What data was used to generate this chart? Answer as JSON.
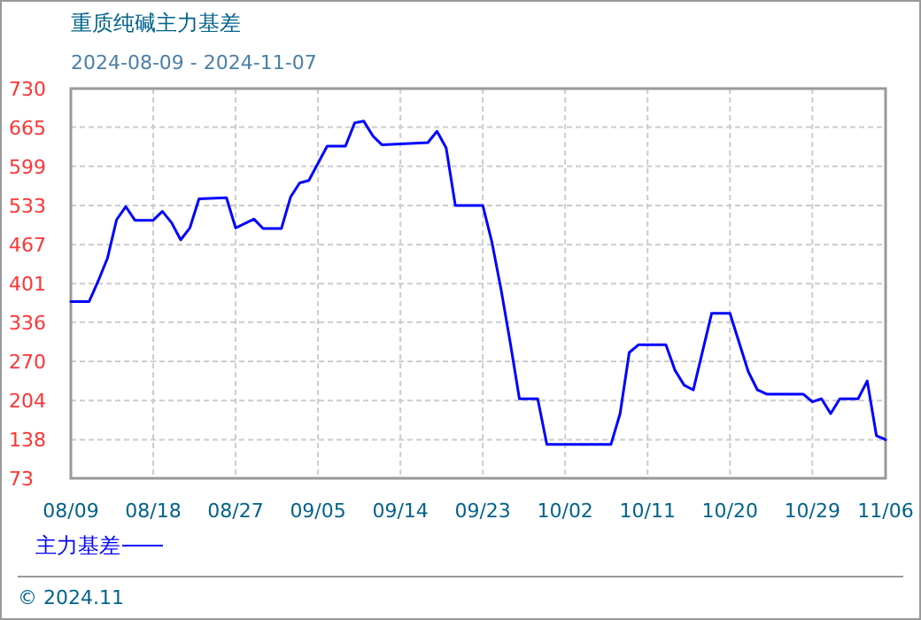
{
  "chart_data": {
    "type": "line",
    "title": "重质纯碱主力基差",
    "subtitle": "2024-08-09 - 2024-11-07",
    "annotations": [
      "© 2024.11"
    ],
    "x": [
      "2024-08-09",
      "2024-08-11",
      "2024-08-12",
      "2024-08-13",
      "2024-08-14",
      "2024-08-15",
      "2024-08-16",
      "2024-08-18",
      "2024-08-19",
      "2024-08-20",
      "2024-08-21",
      "2024-08-22",
      "2024-08-23",
      "2024-08-26",
      "2024-08-27",
      "2024-08-29",
      "2024-08-30",
      "2024-09-01",
      "2024-09-02",
      "2024-09-03",
      "2024-09-04",
      "2024-09-06",
      "2024-09-08",
      "2024-09-09",
      "2024-09-10",
      "2024-09-11",
      "2024-09-12",
      "2024-09-17",
      "2024-09-18",
      "2024-09-19",
      "2024-09-20",
      "2024-09-23",
      "2024-09-24",
      "2024-09-25",
      "2024-09-26",
      "2024-09-27",
      "2024-09-29",
      "2024-09-30",
      "2024-10-07",
      "2024-10-08",
      "2024-10-09",
      "2024-10-10",
      "2024-10-13",
      "2024-10-14",
      "2024-10-15",
      "2024-10-16",
      "2024-10-18",
      "2024-10-20",
      "2024-10-22",
      "2024-10-23",
      "2024-10-24",
      "2024-10-28",
      "2024-10-29",
      "2024-10-30",
      "2024-10-31",
      "2024-11-01",
      "2024-11-03",
      "2024-11-04",
      "2024-11-05",
      "2024-11-06"
    ],
    "series": [
      {
        "name": "主力基差",
        "color": "#0000ff",
        "values": [
          371,
          371,
          406,
          444,
          509,
          531,
          508,
          508,
          523,
          504,
          475,
          495,
          544,
          546,
          495,
          510,
          494,
          494,
          547,
          571,
          575,
          633,
          633,
          672,
          675,
          650,
          635,
          639,
          658,
          630,
          533,
          533,
          471,
          391,
          302,
          207,
          207,
          130,
          130,
          182,
          285,
          298,
          298,
          255,
          230,
          222,
          351,
          351,
          253,
          222,
          215,
          215,
          202,
          207,
          182,
          207,
          207,
          237,
          145,
          138
        ]
      }
    ],
    "xlim": [
      "2024-08-09",
      "2024-11-06"
    ],
    "xticks": [
      {
        "value": "2024-08-09",
        "label": "08/09"
      },
      {
        "value": "2024-08-18",
        "label": "08/18"
      },
      {
        "value": "2024-08-27",
        "label": "08/27"
      },
      {
        "value": "2024-09-05",
        "label": "09/05"
      },
      {
        "value": "2024-09-14",
        "label": "09/14"
      },
      {
        "value": "2024-09-23",
        "label": "09/23"
      },
      {
        "value": "2024-10-02",
        "label": "10/02"
      },
      {
        "value": "2024-10-11",
        "label": "10/11"
      },
      {
        "value": "2024-10-20",
        "label": "10/20"
      },
      {
        "value": "2024-10-29",
        "label": "10/29"
      },
      {
        "value": "2024-11-06",
        "label": "11/06"
      }
    ],
    "ylim": [
      73,
      730
    ],
    "yticks": [
      73,
      138,
      204,
      270,
      336,
      401,
      467,
      533,
      599,
      665,
      730
    ],
    "grid": true,
    "legend": "bottom left",
    "marker": "none",
    "line_style": "solid"
  }
}
